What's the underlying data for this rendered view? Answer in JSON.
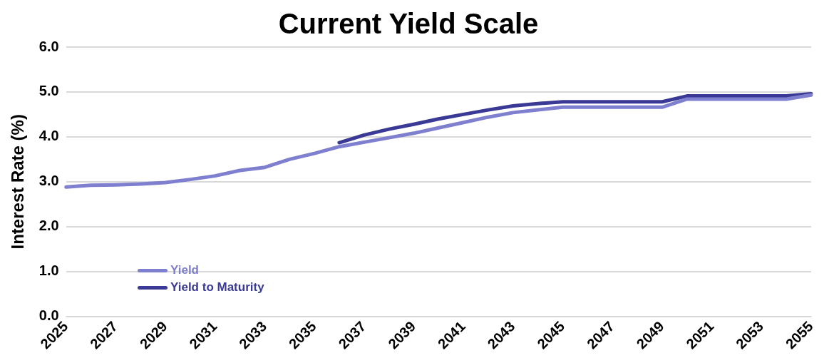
{
  "chart_data": {
    "type": "line",
    "title": "Current Yield Scale",
    "ylabel": "Interest Rate (%)",
    "categories": [
      "2025",
      null,
      "2027",
      null,
      "2029",
      null,
      "2031",
      null,
      "2033",
      null,
      "2035",
      null,
      "2037",
      null,
      "2039",
      null,
      "2041",
      null,
      "2043",
      null,
      "2045",
      null,
      "2047",
      null,
      "2049",
      null,
      "2051",
      null,
      "2053",
      null,
      "2055"
    ],
    "series": [
      {
        "name": "Yield",
        "color": "#7f7fcf",
        "values": [
          2.88,
          2.92,
          2.93,
          2.95,
          2.98,
          3.05,
          3.13,
          3.25,
          3.32,
          3.5,
          3.63,
          3.78,
          3.88,
          3.98,
          4.08,
          4.2,
          4.32,
          4.44,
          4.54,
          4.6,
          4.66,
          4.66,
          4.66,
          4.66,
          4.66,
          4.84,
          4.84,
          4.84,
          4.84,
          4.84,
          4.93
        ]
      },
      {
        "name": "Yield to Maturity",
        "color": "#3a3a96",
        "values": [
          null,
          null,
          null,
          null,
          null,
          null,
          null,
          null,
          null,
          null,
          null,
          3.87,
          4.04,
          4.17,
          4.28,
          4.4,
          4.5,
          4.6,
          4.69,
          4.74,
          4.78,
          4.78,
          4.78,
          4.78,
          4.78,
          4.91,
          4.91,
          4.91,
          4.91,
          4.91,
          4.96
        ]
      }
    ],
    "ylim": [
      0,
      6
    ],
    "yticks": [
      {
        "value": 0,
        "label": "0.0"
      },
      {
        "value": 1,
        "label": "1.0"
      },
      {
        "value": 2,
        "label": "2.0"
      },
      {
        "value": 3,
        "label": "3.0"
      },
      {
        "value": 4,
        "label": "4.0"
      },
      {
        "value": 5,
        "label": "5.0"
      },
      {
        "value": 6,
        "label": "6.0"
      }
    ],
    "grid": "y",
    "legend": "bottom left",
    "marker": "none",
    "line_style": "solid"
  }
}
